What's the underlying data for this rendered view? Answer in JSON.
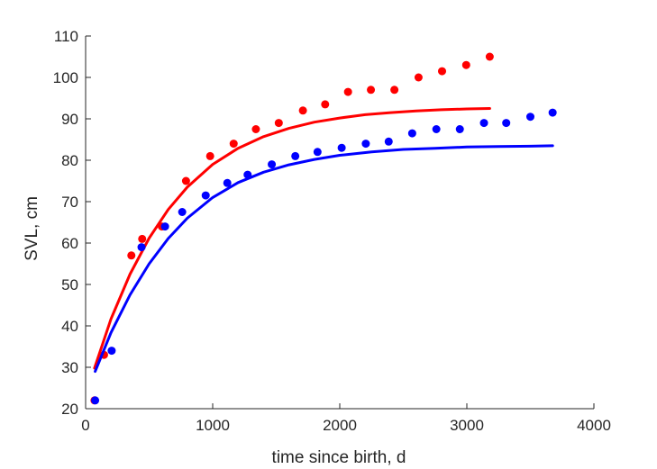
{
  "chart_data": {
    "type": "scatter",
    "title": "",
    "xlabel": "time since birth, d",
    "ylabel": "SVL, cm",
    "xlim": [
      0,
      4000
    ],
    "ylim": [
      20,
      110
    ],
    "xticks": [
      0,
      1000,
      2000,
      3000,
      4000
    ],
    "yticks": [
      20,
      30,
      40,
      50,
      60,
      70,
      80,
      90,
      100,
      110
    ],
    "grid": false,
    "legend": "none",
    "series": [
      {
        "color": "#ff0000",
        "kind": "points",
        "x": [
          70,
          145,
          360,
          445,
          600,
          790,
          980,
          1165,
          1340,
          1520,
          1710,
          1885,
          2065,
          2245,
          2430,
          2620,
          2805,
          2995,
          3180
        ],
        "y": [
          22,
          33,
          57,
          61,
          64,
          75,
          81,
          84,
          87.5,
          89,
          92,
          93.5,
          96.5,
          97,
          97,
          100,
          101.5,
          103,
          105
        ]
      },
      {
        "color": "#ff0000",
        "kind": "line",
        "x": [
          70,
          200,
          350,
          500,
          650,
          800,
          1000,
          1200,
          1400,
          1600,
          1800,
          2000,
          2200,
          2400,
          2600,
          2800,
          3000,
          3180
        ],
        "y": [
          29.8,
          41.7,
          52.5,
          61.2,
          68.1,
          73.5,
          79.0,
          82.9,
          85.7,
          87.7,
          89.2,
          90.2,
          91.0,
          91.5,
          91.9,
          92.2,
          92.4,
          92.5
        ]
      },
      {
        "color": "#0000ff",
        "kind": "points",
        "x": [
          75,
          205,
          440,
          625,
          760,
          945,
          1115,
          1275,
          1465,
          1650,
          1825,
          2015,
          2205,
          2385,
          2570,
          2760,
          2945,
          3135,
          3310,
          3500,
          3675
        ],
        "y": [
          22,
          34,
          59,
          64,
          67.5,
          71.5,
          74.5,
          76.5,
          79,
          81,
          82,
          83,
          84,
          84.5,
          86.5,
          87.5,
          87.5,
          89,
          89,
          90.5,
          91.5
        ]
      },
      {
        "color": "#0000ff",
        "kind": "line",
        "x": [
          75,
          200,
          350,
          500,
          650,
          800,
          1000,
          1200,
          1400,
          1600,
          1800,
          2000,
          2250,
          2500,
          2750,
          3000,
          3250,
          3500,
          3675
        ],
        "y": [
          29.0,
          38.4,
          47.5,
          55.0,
          61.1,
          66.0,
          71.0,
          74.6,
          77.1,
          78.9,
          80.2,
          81.2,
          82.0,
          82.6,
          82.9,
          83.2,
          83.3,
          83.4,
          83.5
        ]
      }
    ]
  }
}
